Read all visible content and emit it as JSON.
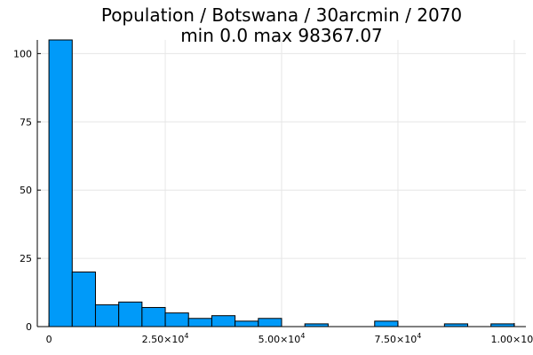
{
  "chart_data": {
    "type": "bar",
    "title": "Population / Botswana / 30arcmin / 2070",
    "subtitle": "min 0.0  max 98367.07",
    "xlabel": "",
    "ylabel": "",
    "bin_width": 5000,
    "bin_edges_start": 0,
    "counts": [
      105,
      20,
      8,
      9,
      7,
      5,
      3,
      4,
      2,
      3,
      0,
      1,
      0,
      0,
      2,
      0,
      0,
      1,
      0,
      1
    ],
    "xlim": [
      -2500,
      102500
    ],
    "ylim": [
      0,
      105
    ],
    "x_ticks": [
      {
        "value": 0,
        "base": "0",
        "exp": ""
      },
      {
        "value": 25000,
        "base": "2.50×10",
        "exp": "4"
      },
      {
        "value": 50000,
        "base": "5.00×10",
        "exp": "4"
      },
      {
        "value": 75000,
        "base": "7.50×10",
        "exp": "4"
      },
      {
        "value": 100000,
        "base": "1.00×10",
        "exp": "5"
      }
    ],
    "y_ticks": [
      0,
      25,
      50,
      75,
      100
    ],
    "grid": true,
    "bar_color": "#009AF9",
    "bar_edge_color": "#000000"
  }
}
